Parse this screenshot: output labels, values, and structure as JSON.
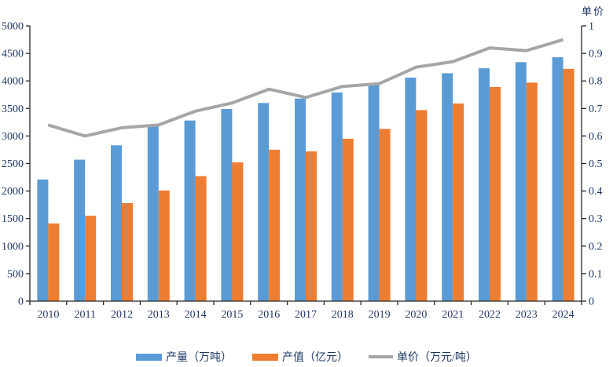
{
  "chart_data": {
    "type": "bar",
    "subtype": "grouped-bars-with-line",
    "title": "",
    "categories": [
      "2010",
      "2011",
      "2012",
      "2013",
      "2014",
      "2015",
      "2016",
      "2017",
      "2018",
      "2019",
      "2020",
      "2021",
      "2022",
      "2023",
      "2024"
    ],
    "series": [
      {
        "name": "产量（万吨）",
        "type": "bar",
        "axis": "left",
        "color": "#5B9BD5",
        "values": [
          2210,
          2570,
          2830,
          3170,
          3280,
          3490,
          3600,
          3680,
          3790,
          3950,
          4060,
          4140,
          4230,
          4340,
          4430
        ]
      },
      {
        "name": "产值（亿元）",
        "type": "bar",
        "axis": "left",
        "color": "#ED7D31",
        "values": [
          1410,
          1550,
          1780,
          2010,
          2270,
          2520,
          2750,
          2720,
          2950,
          3130,
          3470,
          3590,
          3890,
          3970,
          4220
        ]
      },
      {
        "name": "单价（万元/吨）",
        "type": "line",
        "axis": "right",
        "color": "#A6A6A6",
        "values": [
          0.64,
          0.6,
          0.63,
          0.64,
          0.69,
          0.72,
          0.77,
          0.74,
          0.78,
          0.79,
          0.85,
          0.87,
          0.92,
          0.91,
          0.95
        ]
      }
    ],
    "left_axis": {
      "min": 0,
      "max": 5000,
      "step": 500,
      "ticks": [
        "0",
        "500",
        "1000",
        "1500",
        "2000",
        "2500",
        "3000",
        "3500",
        "4000",
        "4500",
        "5000"
      ]
    },
    "right_axis": {
      "min": 0,
      "max": 1,
      "step": 0.1,
      "title": "单价",
      "ticks": [
        "0",
        "0.1",
        "0.2",
        "0.3",
        "0.4",
        "0.5",
        "0.6",
        "0.7",
        "0.8",
        "0.9",
        "1"
      ]
    },
    "grid": false,
    "legend_position": "bottom",
    "text_color": "#1F3864",
    "axis_color": "#262626"
  }
}
